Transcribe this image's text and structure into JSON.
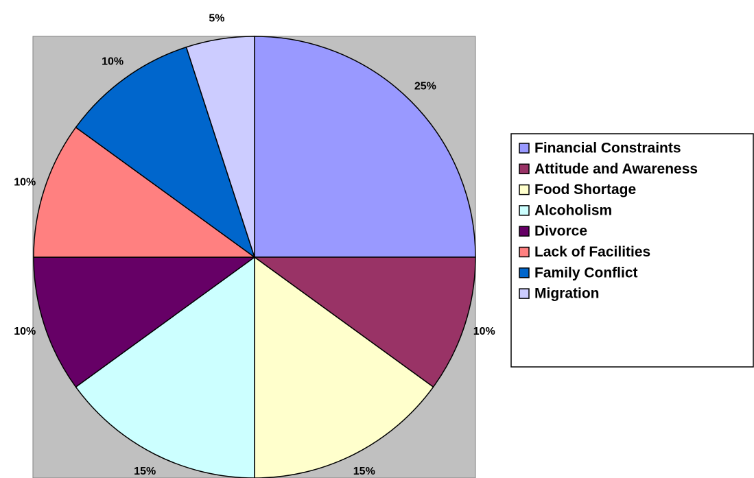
{
  "chart_data": {
    "type": "pie",
    "categories": [
      "Financial Constraints",
      "Attitude and Awareness",
      "Food Shortage",
      "Alcoholism",
      "Divorce",
      "Lack of Facilities",
      "Family Conflict",
      "Migration"
    ],
    "values": [
      25,
      10,
      15,
      15,
      10,
      10,
      10,
      5
    ],
    "value_labels": [
      "25%",
      "10%",
      "15%",
      "15%",
      "10%",
      "10%",
      "10%",
      "5%"
    ],
    "colors": [
      "#9999ff",
      "#993366",
      "#ffffcc",
      "#ccffff",
      "#660066",
      "#ff8080",
      "#0066cc",
      "#ccccff"
    ],
    "legend": "right"
  }
}
